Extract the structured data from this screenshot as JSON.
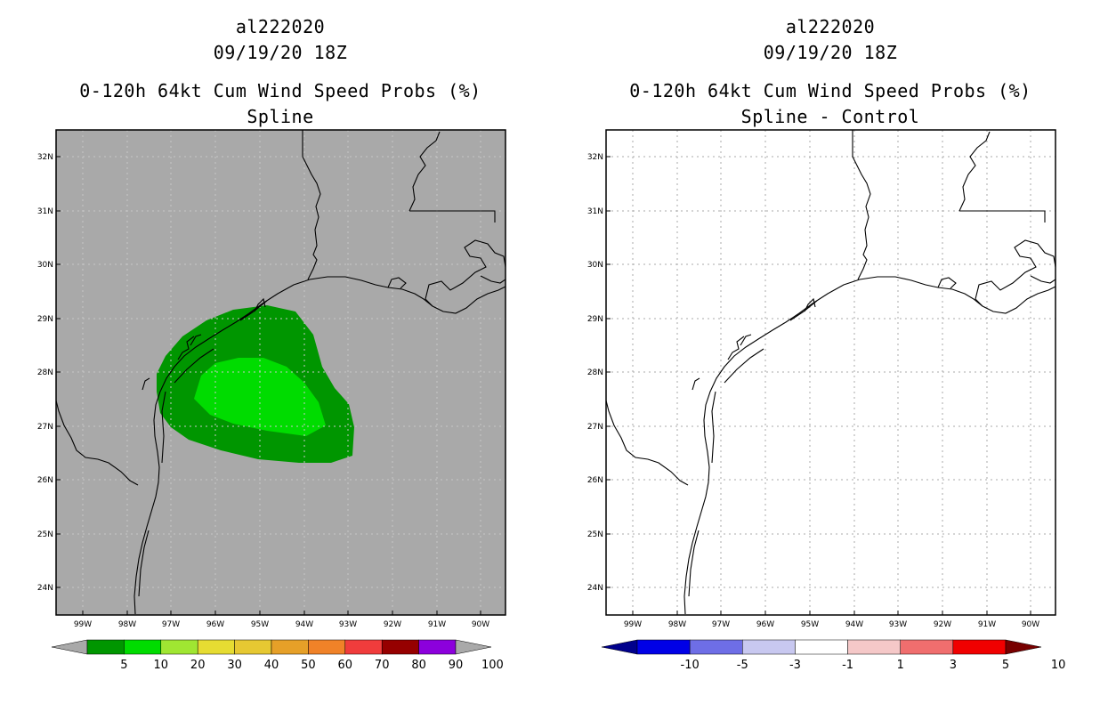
{
  "left_panel": {
    "title_line1": "al222020",
    "title_line2": "09/19/20 18Z",
    "title_line3": "0-120h 64kt Cum Wind Speed Probs (%)",
    "title_line4": "Spline",
    "background_color": "#a9a9a9",
    "lat_labels": [
      "32N",
      "31N",
      "30N",
      "29N",
      "28N",
      "27N",
      "26N",
      "25N",
      "24N"
    ],
    "lon_labels": [
      "99W",
      "98W",
      "97W",
      "96W",
      "95W",
      "94W",
      "93W",
      "92W",
      "91W",
      "90W"
    ],
    "colorbar": {
      "colors": [
        "#a9a9a9",
        "#009600",
        "#00dc00",
        "#a0e632",
        "#e6dc32",
        "#e6c832",
        "#e6a028",
        "#f08228",
        "#f03c3c",
        "#960000",
        "#8c00dc",
        "#a9a9a9"
      ],
      "labels": [
        "5",
        "10",
        "20",
        "30",
        "40",
        "50",
        "60",
        "70",
        "80",
        "90",
        "100"
      ]
    },
    "contours": [
      {
        "label": "5-10 %",
        "color": "#009600"
      },
      {
        "label": "10-20 %",
        "color": "#00dc00"
      }
    ]
  },
  "right_panel": {
    "title_line1": "al222020",
    "title_line2": "09/19/20 18Z",
    "title_line3": "0-120h 64kt Cum Wind Speed Probs (%)",
    "title_line4": "Spline - Control",
    "background_color": "#ffffff",
    "lat_labels": [
      "32N",
      "31N",
      "30N",
      "29N",
      "28N",
      "27N",
      "26N",
      "25N",
      "24N"
    ],
    "lon_labels": [
      "99W",
      "98W",
      "97W",
      "96W",
      "95W",
      "94W",
      "93W",
      "92W",
      "91W",
      "90W"
    ],
    "colorbar": {
      "colors": [
        "#00008c",
        "#0000e6",
        "#6e6ee6",
        "#c8c8f0",
        "#ffffff",
        "#f5c8c8",
        "#f06e6e",
        "#f00000",
        "#780000"
      ],
      "labels": [
        "-10",
        "-5",
        "-3",
        "-1",
        "1",
        "3",
        "5",
        "10"
      ]
    }
  }
}
